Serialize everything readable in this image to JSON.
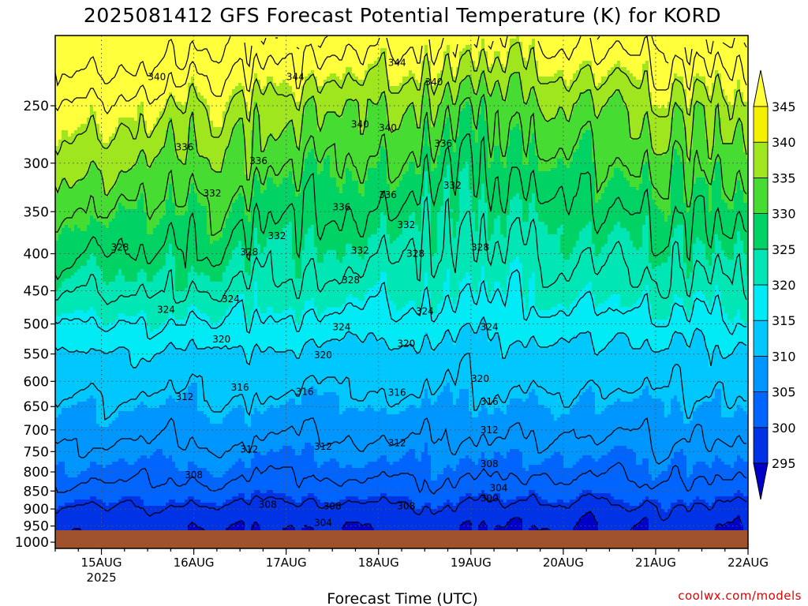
{
  "chart_data": {
    "type": "heatmap",
    "title": "2025081412 GFS Forecast Potential Temperature (K) for KORD",
    "xlabel": "Forecast Time (UTC)",
    "ylabel": "",
    "x_ticks": [
      "15AUG",
      "16AUG",
      "17AUG",
      "18AUG",
      "19AUG",
      "20AUG",
      "21AUG",
      "22AUG"
    ],
    "x_year_label": "2025",
    "x_range": [
      "2025-08-14T12",
      "2025-08-22T00"
    ],
    "y_ticks": [
      250,
      300,
      350,
      400,
      450,
      500,
      550,
      600,
      650,
      700,
      750,
      800,
      850,
      900,
      950,
      1000
    ],
    "y_range": [
      200,
      1020
    ],
    "y_scale": "log-pressure",
    "grid": true,
    "colorbar": {
      "ticks": [
        295,
        300,
        305,
        310,
        315,
        320,
        325,
        330,
        335,
        340,
        345
      ],
      "colors": [
        "#0000c8",
        "#0032e6",
        "#0064ff",
        "#0096ff",
        "#00c8ff",
        "#00ebf5",
        "#00e6b4",
        "#00d264",
        "#46dc32",
        "#a0e61e",
        "#f5f000"
      ],
      "under_color": "#3c00dc",
      "over_color": "#ffff3c",
      "placement": "right"
    },
    "ground_color": "#a0522d",
    "contour_labels": [
      {
        "x": 0.6,
        "p": 228,
        "label": "340"
      },
      {
        "x": 2.1,
        "p": 228,
        "label": "344"
      },
      {
        "x": 3.2,
        "p": 218,
        "label": "344"
      },
      {
        "x": 3.6,
        "p": 232,
        "label": "340"
      },
      {
        "x": 0.9,
        "p": 285,
        "label": "336"
      },
      {
        "x": 1.7,
        "p": 298,
        "label": "336"
      },
      {
        "x": 2.8,
        "p": 265,
        "label": "340"
      },
      {
        "x": 3.1,
        "p": 268,
        "label": "340"
      },
      {
        "x": 3.7,
        "p": 282,
        "label": "336"
      },
      {
        "x": 1.2,
        "p": 330,
        "label": "332"
      },
      {
        "x": 2.6,
        "p": 345,
        "label": "336"
      },
      {
        "x": 3.1,
        "p": 332,
        "label": "336"
      },
      {
        "x": 3.8,
        "p": 322,
        "label": "332"
      },
      {
        "x": 1.9,
        "p": 378,
        "label": "332"
      },
      {
        "x": 2.8,
        "p": 396,
        "label": "332"
      },
      {
        "x": 3.3,
        "p": 365,
        "label": "332"
      },
      {
        "x": 0.2,
        "p": 392,
        "label": "328"
      },
      {
        "x": 1.6,
        "p": 398,
        "label": "328"
      },
      {
        "x": 2.7,
        "p": 435,
        "label": "328"
      },
      {
        "x": 3.4,
        "p": 400,
        "label": "328"
      },
      {
        "x": 4.1,
        "p": 392,
        "label": "328"
      },
      {
        "x": 0.7,
        "p": 478,
        "label": "324"
      },
      {
        "x": 1.4,
        "p": 462,
        "label": "324"
      },
      {
        "x": 2.6,
        "p": 505,
        "label": "324"
      },
      {
        "x": 3.5,
        "p": 480,
        "label": "324"
      },
      {
        "x": 4.2,
        "p": 505,
        "label": "324"
      },
      {
        "x": 1.3,
        "p": 525,
        "label": "320"
      },
      {
        "x": 2.4,
        "p": 552,
        "label": "320"
      },
      {
        "x": 3.3,
        "p": 532,
        "label": "320"
      },
      {
        "x": 4.1,
        "p": 595,
        "label": "320"
      },
      {
        "x": 0.9,
        "p": 630,
        "label": "312"
      },
      {
        "x": 1.5,
        "p": 612,
        "label": "316"
      },
      {
        "x": 2.2,
        "p": 620,
        "label": "316"
      },
      {
        "x": 3.2,
        "p": 622,
        "label": "316"
      },
      {
        "x": 4.2,
        "p": 640,
        "label": "316"
      },
      {
        "x": 1.6,
        "p": 745,
        "label": "312"
      },
      {
        "x": 2.4,
        "p": 738,
        "label": "312"
      },
      {
        "x": 3.2,
        "p": 730,
        "label": "312"
      },
      {
        "x": 4.2,
        "p": 700,
        "label": "312"
      },
      {
        "x": 1.0,
        "p": 808,
        "label": "308"
      },
      {
        "x": 1.8,
        "p": 888,
        "label": "308"
      },
      {
        "x": 2.5,
        "p": 892,
        "label": "308"
      },
      {
        "x": 3.3,
        "p": 892,
        "label": "308"
      },
      {
        "x": 2.4,
        "p": 940,
        "label": "304"
      },
      {
        "x": 4.2,
        "p": 780,
        "label": "308"
      },
      {
        "x": 4.3,
        "p": 842,
        "label": "304"
      },
      {
        "x": 4.2,
        "p": 870,
        "label": "300"
      }
    ],
    "credit": "coolwx.com/models"
  }
}
